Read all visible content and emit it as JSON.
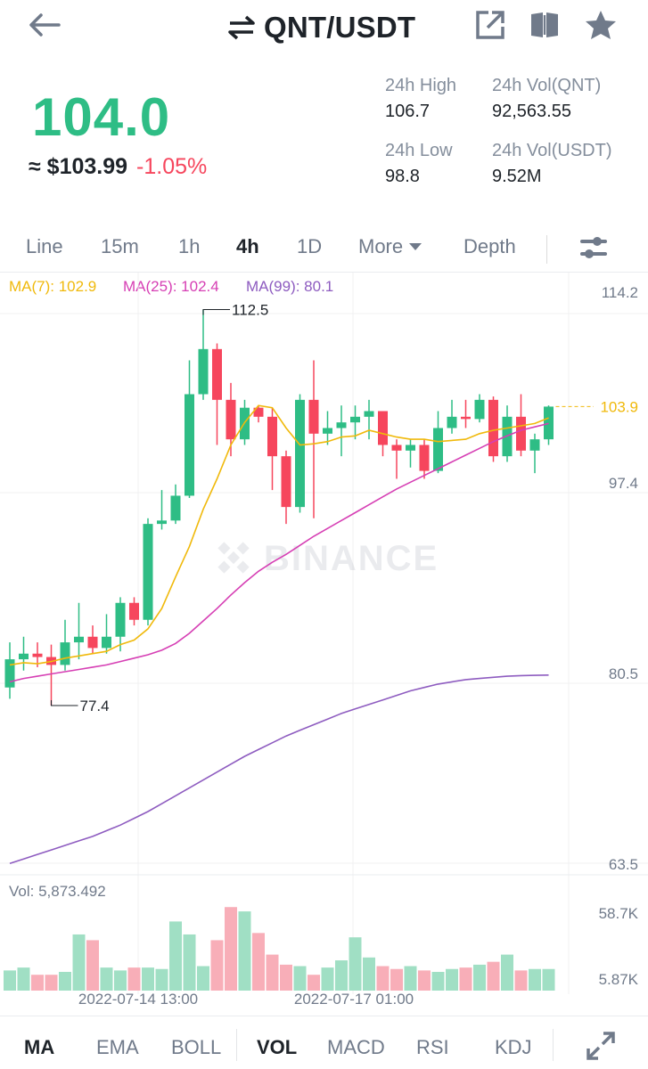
{
  "header": {
    "pair": "QNT/USDT",
    "icons": [
      "back-arrow-icon",
      "swap-arrows-icon",
      "share-icon",
      "book-icon",
      "star-icon"
    ]
  },
  "price": {
    "last": "104.0",
    "approx": "≈ $103.99",
    "change": "-1.05%",
    "color_up": "#2ebd85",
    "color_down": "#f6465d"
  },
  "stats": {
    "high_label": "24h High",
    "high_value": "106.7",
    "low_label": "24h Low",
    "low_value": "98.8",
    "vol_base_label": "24h Vol(QNT)",
    "vol_base_value": "92,563.55",
    "vol_quote_label": "24h Vol(USDT)",
    "vol_quote_value": "9.52M"
  },
  "intervals": {
    "line": "Line",
    "m15": "15m",
    "h1": "1h",
    "h4": "4h",
    "d1": "1D",
    "more": "More",
    "depth": "Depth",
    "active": "4h"
  },
  "ma_legend": {
    "ma7": "MA(7): 102.9",
    "ma25": "MA(25): 102.4",
    "ma99": "MA(99): 80.1",
    "ma7_color": "#f0b90b",
    "ma25_color": "#d63fb4",
    "ma99_color": "#8e5cc0"
  },
  "chart_data": {
    "type": "candlestick",
    "price_axis": [
      "114.2",
      "97.4",
      "80.5",
      "63.5"
    ],
    "current_price_label": "103.9",
    "high_marker": "112.5",
    "low_marker": "77.4",
    "watermark": "BINANCE",
    "volume_label": "Vol: 5,873.492",
    "volume_axis": [
      "58.7K",
      "5.87K"
    ],
    "time_labels": [
      "2022-07-14 13:00",
      "2022-07-17 01:00"
    ],
    "candles": [
      [
        79.0,
        83.0,
        78.0,
        81.5
      ],
      [
        81.5,
        83.5,
        80.5,
        82.0
      ],
      [
        82.0,
        83.0,
        80.8,
        81.7
      ],
      [
        81.7,
        82.8,
        77.4,
        81.0
      ],
      [
        81.0,
        85.0,
        80.5,
        83.0
      ],
      [
        83.0,
        86.5,
        81.5,
        83.5
      ],
      [
        83.5,
        84.5,
        82.0,
        82.5
      ],
      [
        82.5,
        85.5,
        82.0,
        83.5
      ],
      [
        83.5,
        87.0,
        82.2,
        86.5
      ],
      [
        86.5,
        87.0,
        84.5,
        85.0
      ],
      [
        85.0,
        94.0,
        84.5,
        93.5
      ],
      [
        93.5,
        96.5,
        93.0,
        93.8
      ],
      [
        93.8,
        97.0,
        93.5,
        96.0
      ],
      [
        96.0,
        108.0,
        95.8,
        105.0
      ],
      [
        105.0,
        112.5,
        104.5,
        109.0
      ],
      [
        109.0,
        109.5,
        100.5,
        104.5
      ],
      [
        104.5,
        106.0,
        99.5,
        101.0
      ],
      [
        101.0,
        104.5,
        100.5,
        103.8
      ],
      [
        103.8,
        104.0,
        102.5,
        103.0
      ],
      [
        103.0,
        103.8,
        96.5,
        99.5
      ],
      [
        99.5,
        100.0,
        93.5,
        95.0
      ],
      [
        95.0,
        105.0,
        94.5,
        104.5
      ],
      [
        104.5,
        108.0,
        94.0,
        101.5
      ],
      [
        101.5,
        103.5,
        100.5,
        102.0
      ],
      [
        102.0,
        104.0,
        99.5,
        102.5
      ],
      [
        102.5,
        104.0,
        101.0,
        103.0
      ],
      [
        103.0,
        104.5,
        101.0,
        103.5
      ],
      [
        103.5,
        103.5,
        99.5,
        100.5
      ],
      [
        100.5,
        101.0,
        97.5,
        100.0
      ],
      [
        100.0,
        101.0,
        98.5,
        100.5
      ],
      [
        100.5,
        101.0,
        97.5,
        98.2
      ],
      [
        98.2,
        103.5,
        98.0,
        102.0
      ],
      [
        102.0,
        104.5,
        101.5,
        103.0
      ],
      [
        103.0,
        104.5,
        102.0,
        102.8
      ],
      [
        102.8,
        105.0,
        102.5,
        104.5
      ],
      [
        104.5,
        104.8,
        99.0,
        99.5
      ],
      [
        99.5,
        104.0,
        99.0,
        103.0
      ],
      [
        103.0,
        105.0,
        99.5,
        100.0
      ],
      [
        100.0,
        101.5,
        98.0,
        101.0
      ],
      [
        101.0,
        104.0,
        100.5,
        103.9
      ]
    ],
    "volumes": [
      14,
      16,
      11,
      11,
      13,
      39,
      35,
      16,
      14,
      16,
      16,
      15,
      48,
      39,
      17,
      35,
      58,
      55,
      40,
      25,
      18,
      17,
      11,
      16,
      21,
      37,
      23,
      17,
      15,
      17,
      14,
      13,
      15,
      16,
      18,
      20,
      25,
      14,
      15,
      15
    ],
    "ma7": [
      81.0,
      81.2,
      81.1,
      81.3,
      81.6,
      81.8,
      82.0,
      82.2,
      82.8,
      83.2,
      84.2,
      86.0,
      88.8,
      91.5,
      94.8,
      97.5,
      100.5,
      102.5,
      104.0,
      103.8,
      102.0,
      100.5,
      100.6,
      100.8,
      101.2,
      101.3,
      101.8,
      101.5,
      101.2,
      101.0,
      101.0,
      100.8,
      100.9,
      101.0,
      101.5,
      101.8,
      102.0,
      102.2,
      102.4,
      102.9
    ],
    "ma25": [
      79.5,
      79.8,
      80.0,
      80.2,
      80.4,
      80.6,
      80.8,
      81.0,
      81.3,
      81.6,
      81.9,
      82.3,
      82.9,
      83.8,
      84.9,
      86.0,
      87.2,
      88.3,
      89.3,
      90.1,
      90.8,
      91.6,
      92.4,
      93.1,
      93.8,
      94.5,
      95.2,
      95.9,
      96.6,
      97.2,
      97.8,
      98.4,
      99.0,
      99.6,
      100.2,
      100.8,
      101.3,
      101.8,
      102.1,
      102.4
    ],
    "ma99": [
      63.4,
      63.8,
      64.2,
      64.6,
      65.0,
      65.4,
      65.8,
      66.3,
      66.8,
      67.4,
      68.0,
      68.7,
      69.4,
      70.1,
      70.8,
      71.5,
      72.2,
      72.9,
      73.5,
      74.1,
      74.7,
      75.2,
      75.7,
      76.2,
      76.7,
      77.1,
      77.5,
      77.9,
      78.3,
      78.7,
      79.0,
      79.3,
      79.5,
      79.7,
      79.8,
      79.9,
      80.0,
      80.05,
      80.08,
      80.1
    ]
  },
  "bottom_tabs": {
    "ma": "MA",
    "ema": "EMA",
    "boll": "BOLL",
    "vol": "VOL",
    "macd": "MACD",
    "rsi": "RSI",
    "kdj": "KDJ"
  }
}
